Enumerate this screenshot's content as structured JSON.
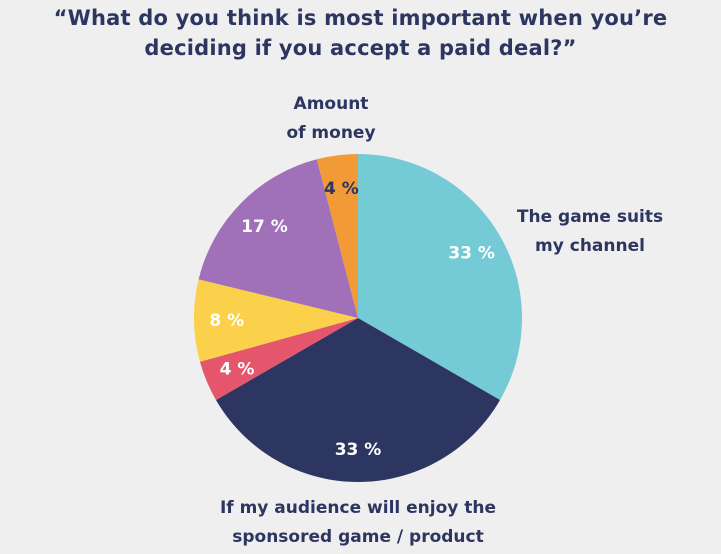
{
  "chart_data": {
    "type": "pie",
    "title_lines": [
      "“What do you think is most important when you’re",
      "deciding if you accept a paid deal?”"
    ],
    "slices": [
      {
        "name": "The game suits my channel",
        "value": 33,
        "label": "33 %",
        "color": "#74cbd6",
        "text_color": "#ffffff"
      },
      {
        "name": "If my audience will enjoy the sponsored game / product",
        "value": 33,
        "label": "33 %",
        "color": "#2d3561",
        "text_color": "#ffffff"
      },
      {
        "name": "",
        "value": 4,
        "label": "4 %",
        "color": "#e5566c",
        "text_color": "#ffffff"
      },
      {
        "name": "",
        "value": 8,
        "label": "8 %",
        "color": "#fbd14b",
        "text_color": "#ffffff"
      },
      {
        "name": "",
        "value": 17,
        "label": "17 %",
        "color": "#a070b9",
        "text_color": "#ffffff"
      },
      {
        "name": "Amount of money",
        "value": 4,
        "label": "4 %",
        "color": "#f29a38",
        "text_color": "#2d3561"
      }
    ],
    "callouts": {
      "money": [
        "Amount",
        "of money"
      ],
      "channel": [
        "The game suits",
        "my channel"
      ],
      "audience": [
        "If my audience will enjoy the",
        "sponsored game / product"
      ]
    }
  }
}
